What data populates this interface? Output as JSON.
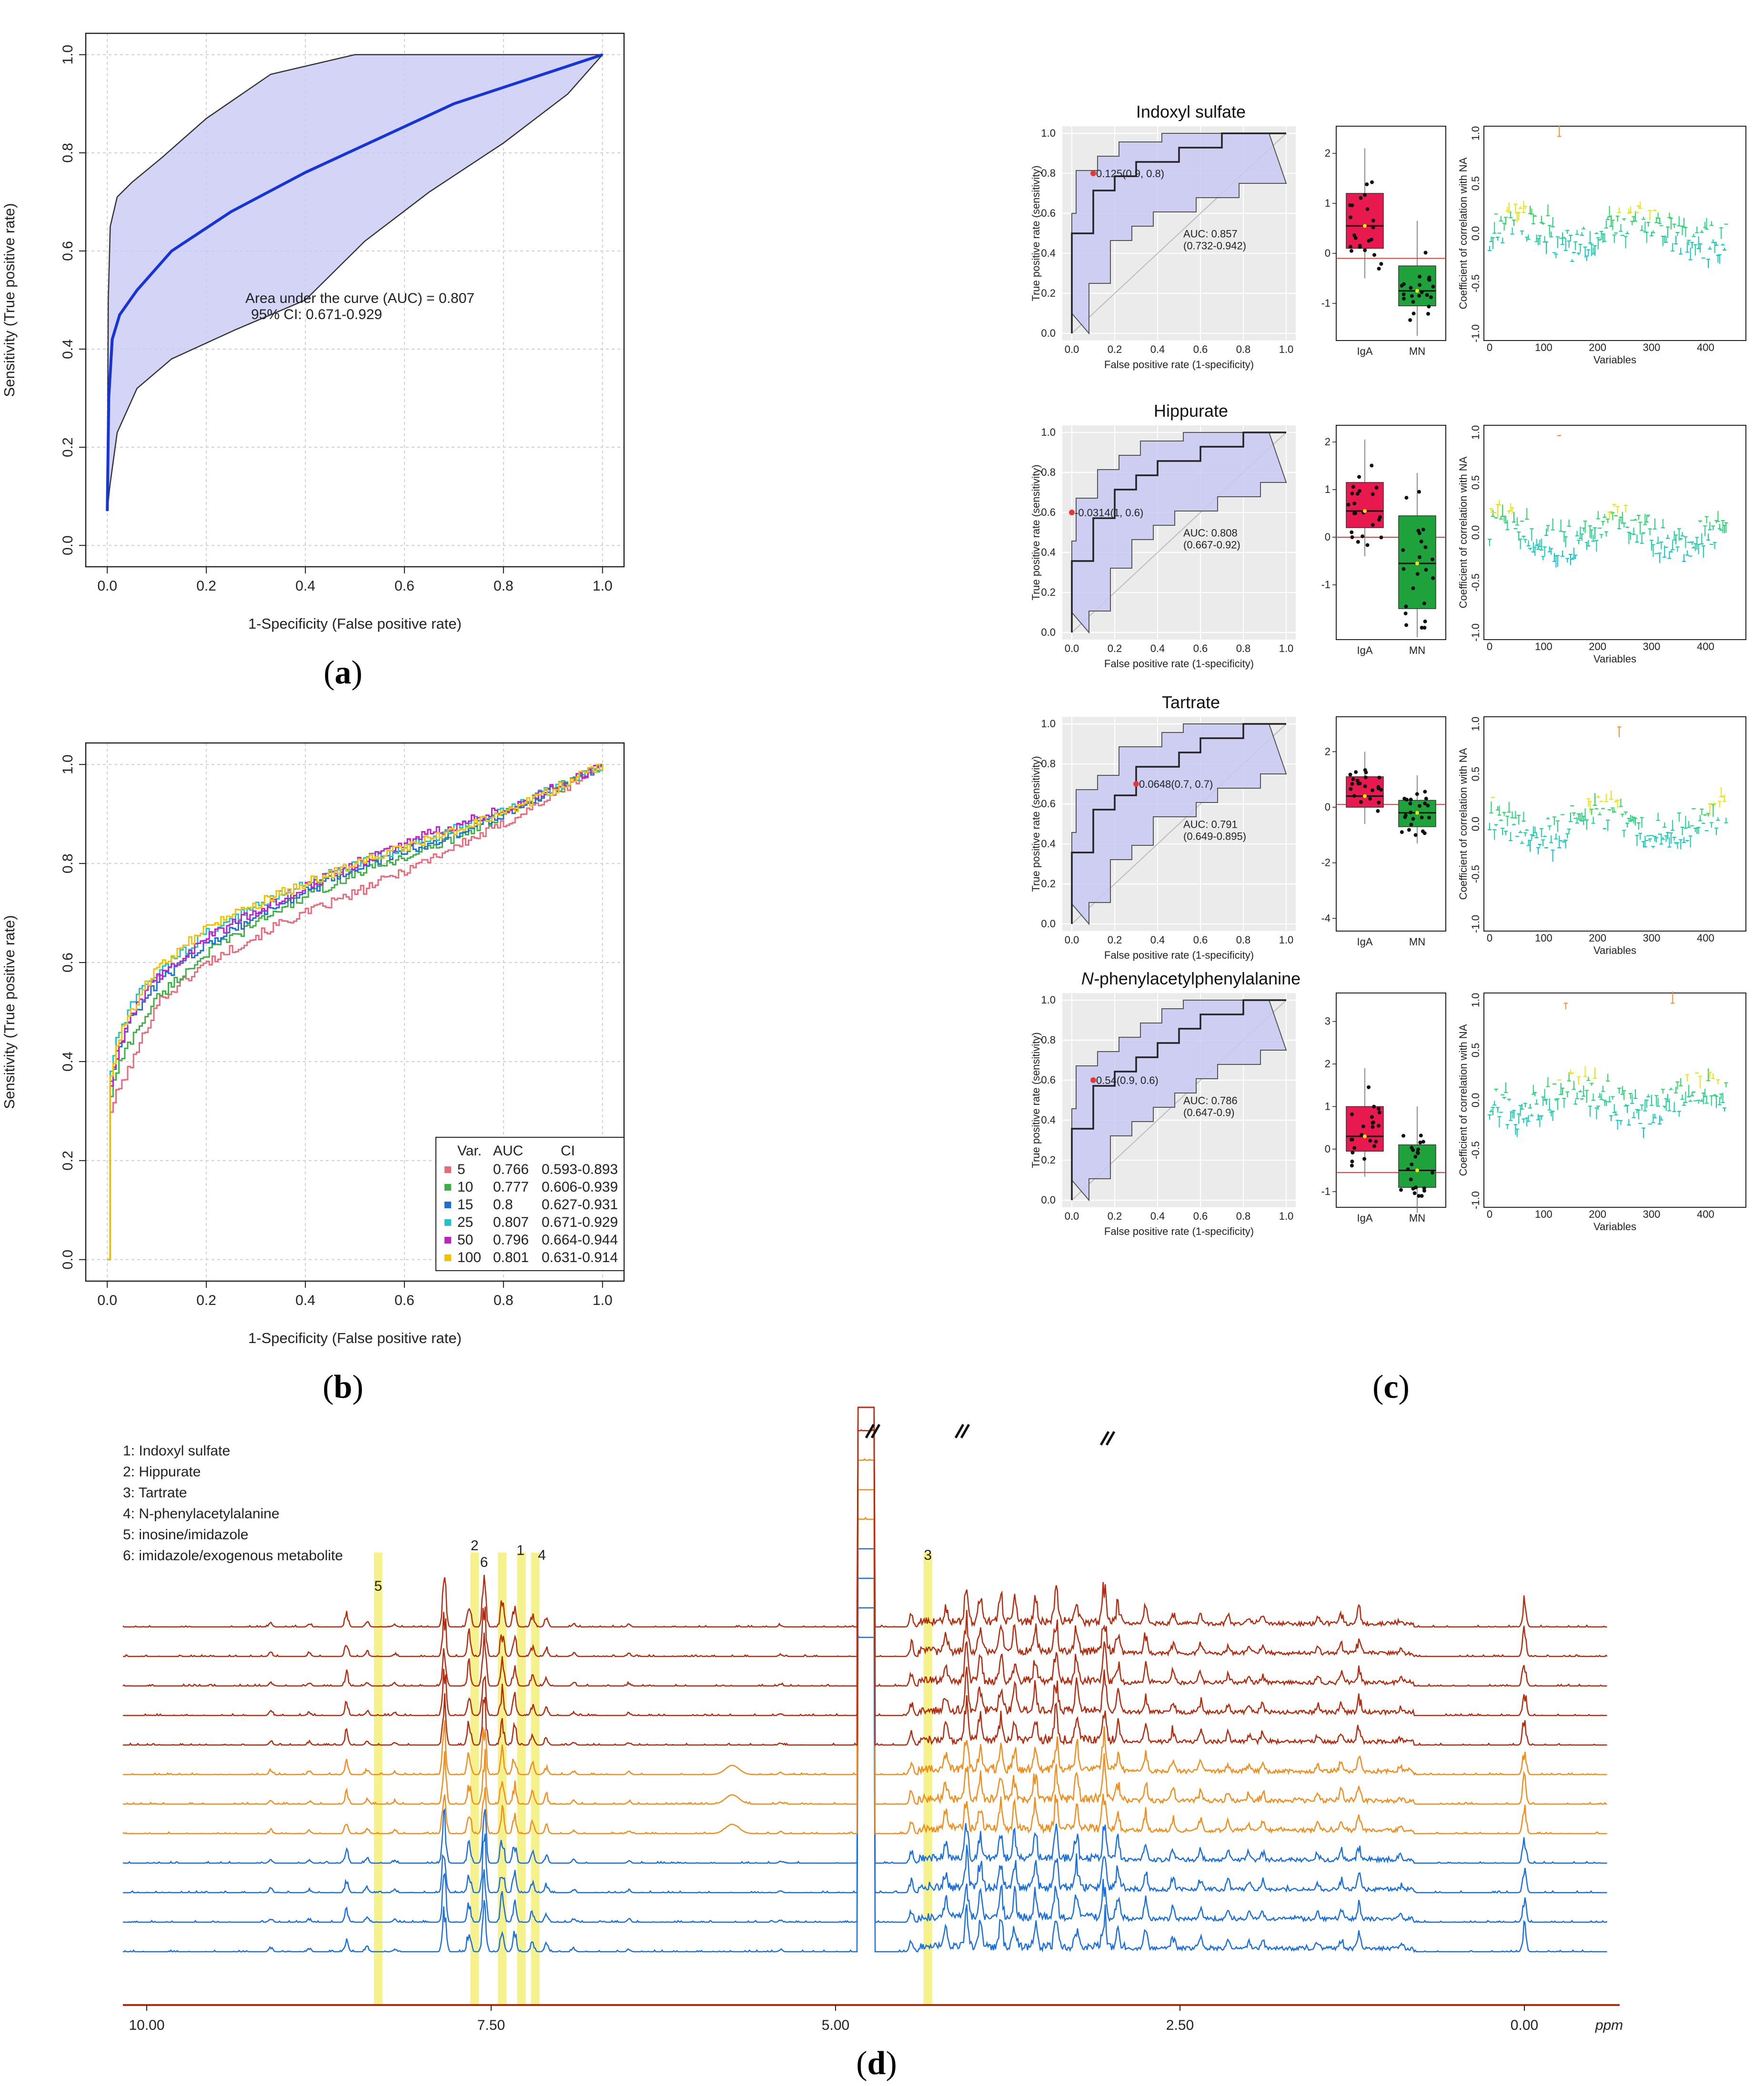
{
  "chart_data": [
    {
      "panel": "a",
      "type": "line",
      "xlabel": "1-Specificity (False positive rate)",
      "ylabel": "Sensitivity (True positive rate)",
      "xlim": [
        0,
        1
      ],
      "ylim": [
        0,
        1
      ],
      "xticks": [
        "0.0",
        "0.2",
        "0.4",
        "0.6",
        "0.8",
        "1.0"
      ],
      "yticks": [
        "0.0",
        "0.2",
        "0.4",
        "0.6",
        "0.8",
        "1.0"
      ],
      "annotation": [
        "Area under the curve (AUC) = 0.807",
        "95% CI: 0.671-0.929"
      ],
      "mean_curve": {
        "x": [
          0,
          0.003,
          0.01,
          0.025,
          0.06,
          0.13,
          0.25,
          0.4,
          0.55,
          0.7,
          0.85,
          1.0
        ],
        "y": [
          0.07,
          0.3,
          0.42,
          0.47,
          0.52,
          0.6,
          0.68,
          0.76,
          0.83,
          0.9,
          0.95,
          1.0
        ]
      },
      "ci_upper": {
        "x": [
          0,
          0.002,
          0.006,
          0.02,
          0.05,
          0.11,
          0.2,
          0.33,
          0.5,
          0.7,
          0.85,
          1.0
        ],
        "y": [
          0.07,
          0.5,
          0.65,
          0.71,
          0.74,
          0.79,
          0.87,
          0.96,
          1.0,
          1.0,
          1.0,
          1.0
        ]
      },
      "ci_lower": {
        "x": [
          0,
          0.005,
          0.02,
          0.06,
          0.13,
          0.26,
          0.4,
          0.52,
          0.65,
          0.8,
          0.93,
          1.0
        ],
        "y": [
          0.07,
          0.12,
          0.23,
          0.32,
          0.38,
          0.44,
          0.5,
          0.62,
          0.72,
          0.82,
          0.92,
          1.0
        ]
      }
    },
    {
      "panel": "b",
      "type": "line",
      "xlabel": "1-Specificity (False positive rate)",
      "ylabel": "Sensitivity (True positive rate)",
      "xlim": [
        0,
        1
      ],
      "ylim": [
        0,
        1
      ],
      "xticks": [
        "0.0",
        "0.2",
        "0.4",
        "0.6",
        "0.8",
        "1.0"
      ],
      "yticks": [
        "0.0",
        "0.2",
        "0.4",
        "0.6",
        "0.8",
        "1.0"
      ],
      "legend_header": [
        "Var.",
        "AUC",
        "CI"
      ],
      "series": [
        {
          "name": "5",
          "auc": "0.766",
          "ci": "0.593-0.893",
          "color": "#e8697a",
          "x": [
            0,
            0.005,
            0.02,
            0.05,
            0.1,
            0.2,
            0.35,
            0.5,
            0.65,
            0.8,
            0.92,
            1.0
          ],
          "y": [
            0,
            0.3,
            0.34,
            0.4,
            0.52,
            0.6,
            0.68,
            0.74,
            0.81,
            0.88,
            0.95,
            1.0
          ]
        },
        {
          "name": "10",
          "auc": "0.777",
          "ci": "0.606-0.939",
          "color": "#3cb043",
          "x": [
            0,
            0.005,
            0.02,
            0.05,
            0.1,
            0.2,
            0.35,
            0.5,
            0.65,
            0.8,
            0.92,
            1.0
          ],
          "y": [
            0,
            0.33,
            0.39,
            0.45,
            0.53,
            0.62,
            0.71,
            0.78,
            0.83,
            0.9,
            0.96,
            1.0
          ]
        },
        {
          "name": "15",
          "auc": "0.8",
          "ci": "0.627-0.931",
          "color": "#1f6fd0",
          "x": [
            0,
            0.005,
            0.02,
            0.05,
            0.1,
            0.2,
            0.35,
            0.5,
            0.65,
            0.8,
            0.92,
            1.0
          ],
          "y": [
            0,
            0.36,
            0.43,
            0.49,
            0.56,
            0.64,
            0.72,
            0.79,
            0.84,
            0.9,
            0.96,
            1.0
          ]
        },
        {
          "name": "25",
          "auc": "0.807",
          "ci": "0.671-0.929",
          "color": "#22c3c8",
          "x": [
            0,
            0.005,
            0.02,
            0.05,
            0.1,
            0.2,
            0.35,
            0.5,
            0.65,
            0.8,
            0.92,
            1.0
          ],
          "y": [
            0,
            0.38,
            0.45,
            0.52,
            0.58,
            0.66,
            0.74,
            0.8,
            0.85,
            0.91,
            0.96,
            1.0
          ]
        },
        {
          "name": "50",
          "auc": "0.796",
          "ci": "0.664-0.944",
          "color": "#c020c8",
          "x": [
            0,
            0.005,
            0.02,
            0.05,
            0.1,
            0.2,
            0.35,
            0.5,
            0.65,
            0.8,
            0.92,
            1.0
          ],
          "y": [
            0,
            0.35,
            0.42,
            0.5,
            0.57,
            0.65,
            0.73,
            0.8,
            0.86,
            0.91,
            0.96,
            1.0
          ]
        },
        {
          "name": "100",
          "auc": "0.801",
          "ci": "0.631-0.914",
          "color": "#f2c200",
          "x": [
            0,
            0.005,
            0.02,
            0.05,
            0.1,
            0.2,
            0.35,
            0.5,
            0.65,
            0.8,
            0.92,
            1.0
          ],
          "y": [
            0,
            0.37,
            0.44,
            0.51,
            0.59,
            0.67,
            0.74,
            0.8,
            0.85,
            0.9,
            0.96,
            1.0
          ]
        }
      ]
    },
    {
      "panel": "c",
      "type": "line",
      "roc_xlabel": "False positive rate (1-specificity)",
      "roc_ylabel": "True positive rate (sensitivity)",
      "corr_ylabel": "Coefficient of correlation with NA",
      "corr_xlabel": "Variables",
      "groups": [
        "IgA",
        "MN"
      ],
      "roc_ticks": [
        "0.0",
        "0.2",
        "0.4",
        "0.6",
        "0.8",
        "1.0"
      ],
      "corr_yticks": [
        "1.0",
        "0.5",
        "0.0",
        "-0.5",
        "-1.0"
      ],
      "rows": [
        {
          "title": "Indoxyl sulfate",
          "italic_prefix": "",
          "cutoff": "0.125(0.9, 0.8)",
          "auc": "AUC: 0.857",
          "ci": "(0.732-0.942)",
          "corr_xticks": [
            "0",
            "100",
            "200",
            "300",
            "400"
          ],
          "box_yticks": [
            "2",
            "1",
            "0",
            "-1"
          ],
          "box_ymin": -1.6,
          "box_ymax": 2.4,
          "iga_box": [
            0.1,
            0.55,
            1.2
          ],
          "mn_box": [
            -1.05,
            -0.75,
            -0.25
          ],
          "cutoff_y": -0.1
        },
        {
          "title": "Hippurate",
          "italic_prefix": "",
          "cutoff": "-0.0314(1, 0.6)",
          "auc": "AUC: 0.808",
          "ci": "(0.667-0.92)",
          "corr_xticks": [
            "0",
            "100",
            "200",
            "300",
            "400"
          ],
          "box_yticks": [
            "2",
            "1",
            "0",
            "-1"
          ],
          "box_ymin": -2.0,
          "box_ymax": 2.2,
          "iga_box": [
            0.2,
            0.55,
            1.15
          ],
          "mn_box": [
            -1.5,
            -0.55,
            0.45
          ],
          "cutoff_y": 0.0
        },
        {
          "title": "Tartrate",
          "italic_prefix": "",
          "cutoff": "0.0648(0.7, 0.7)",
          "auc": "AUC: 0.791",
          "ci": "(0.649-0.895)",
          "corr_xticks": [
            "0",
            "100",
            "200",
            "300",
            "400"
          ],
          "box_yticks": [
            "2",
            "0",
            "-2",
            "-4"
          ],
          "box_ymin": -4.2,
          "box_ymax": 3.0,
          "iga_box": [
            0.0,
            0.4,
            1.1
          ],
          "mn_box": [
            -0.7,
            -0.2,
            0.25
          ],
          "cutoff_y": 0.1
        },
        {
          "title": "phenylacetylphenylalanine",
          "italic_prefix": "N-",
          "cutoff": "0.54(0.9, 0.6)",
          "auc": "AUC: 0.786",
          "ci": "(0.647-0.9)",
          "corr_xticks": [
            "0",
            "100",
            "200",
            "300",
            "400"
          ],
          "box_yticks": [
            "3",
            "2",
            "1",
            "0",
            "-1"
          ],
          "box_ymin": -1.2,
          "box_ymax": 3.5,
          "iga_box": [
            -0.05,
            0.3,
            1.0
          ],
          "mn_box": [
            -0.9,
            -0.5,
            0.1
          ],
          "cutoff_y": -0.55
        }
      ]
    },
    {
      "panel": "d",
      "type": "line",
      "xaxis_unit": "ppm",
      "xticks": [
        "10.00",
        "7.50",
        "5.00",
        "2.50",
        "0.00"
      ],
      "peak_legend": [
        "1: Indoxyl sulfate",
        "2: Hippurate",
        "3: Tartrate",
        "4: N-phenylacetylalanine",
        "5: inosine/imidazole",
        "6: imidazole/exogenous metabolite"
      ],
      "peak_markers": [
        {
          "label": "5",
          "ppm": 8.32
        },
        {
          "label": "2",
          "ppm": 7.62
        },
        {
          "label": "6",
          "ppm": 7.42
        },
        {
          "label": "1",
          "ppm": 7.28
        },
        {
          "label": "4",
          "ppm": 7.18
        },
        {
          "label": "3",
          "ppm": 4.33
        }
      ],
      "traces": [
        {
          "group": "blue",
          "color": "#1a6fe0"
        },
        {
          "group": "blue",
          "color": "#1a6fe0"
        },
        {
          "group": "blue",
          "color": "#1a6fe0"
        },
        {
          "group": "blue",
          "color": "#1a6fe0"
        },
        {
          "group": "orange",
          "color": "#f28c1a"
        },
        {
          "group": "orange",
          "color": "#f28c1a"
        },
        {
          "group": "orange",
          "color": "#f28c1a"
        },
        {
          "group": "red",
          "color": "#b42a0c"
        },
        {
          "group": "red",
          "color": "#b42a0c"
        },
        {
          "group": "red",
          "color": "#b42a0c"
        },
        {
          "group": "red",
          "color": "#b42a0c"
        },
        {
          "group": "red",
          "color": "#b42a0c"
        }
      ]
    }
  ],
  "panel_labels": {
    "a": "a",
    "b": "b",
    "c": "c",
    "d": "d"
  },
  "colors": {
    "ci_fill": "#c9c9f5",
    "mean_curve": "#1535d6",
    "iga": "#e8194f",
    "mn": "#1fa23c",
    "cutoff": "#e53935",
    "highlight": "#f3f07a"
  }
}
